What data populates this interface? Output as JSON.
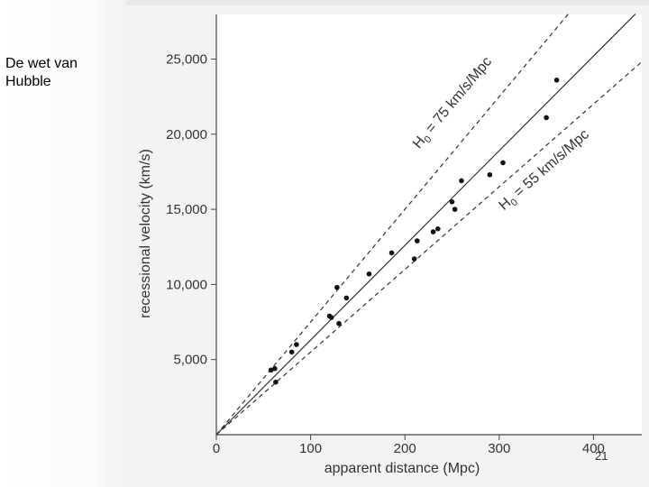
{
  "slide": {
    "title": "De wet van\nHubble",
    "page_number": "21"
  },
  "chart_data": {
    "type": "scatter",
    "title": "",
    "xlabel": "apparent distance (Mpc)",
    "ylabel": "recessional velocity (km/s)",
    "xlim": [
      0,
      450
    ],
    "ylim": [
      0,
      28000
    ],
    "x_ticks": [
      0,
      100,
      200,
      300,
      400
    ],
    "x_tick_labels": [
      "0",
      "100",
      "200",
      "300",
      "400"
    ],
    "y_ticks": [
      5000,
      10000,
      15000,
      20000,
      25000
    ],
    "y_tick_labels": [
      "5,000",
      "10,000",
      "15,000",
      "20,000",
      "25,000"
    ],
    "grid": false,
    "points": [
      {
        "x": 58,
        "y": 4300
      },
      {
        "x": 62,
        "y": 4400
      },
      {
        "x": 63,
        "y": 3500
      },
      {
        "x": 80,
        "y": 5500
      },
      {
        "x": 85,
        "y": 6000
      },
      {
        "x": 120,
        "y": 7900
      },
      {
        "x": 122,
        "y": 7800
      },
      {
        "x": 128,
        "y": 9800
      },
      {
        "x": 130,
        "y": 7400
      },
      {
        "x": 138,
        "y": 9100
      },
      {
        "x": 162,
        "y": 10700
      },
      {
        "x": 186,
        "y": 12100
      },
      {
        "x": 210,
        "y": 11700
      },
      {
        "x": 213,
        "y": 12900
      },
      {
        "x": 230,
        "y": 13500
      },
      {
        "x": 235,
        "y": 13700
      },
      {
        "x": 250,
        "y": 15500
      },
      {
        "x": 253,
        "y": 15000
      },
      {
        "x": 260,
        "y": 16900
      },
      {
        "x": 290,
        "y": 17300
      },
      {
        "x": 304,
        "y": 18100
      },
      {
        "x": 350,
        "y": 21100
      },
      {
        "x": 361,
        "y": 23600
      }
    ],
    "lines": [
      {
        "name": "fit",
        "slope": 63,
        "style": "solid",
        "label": ""
      },
      {
        "name": "H0 = 75 km/s/Mpc",
        "slope": 75,
        "style": "dashed",
        "label_prefix": "H",
        "label_sub": "0",
        "label_rest": " = 75 km/s/Mpc",
        "label_x": 215,
        "label_y": 19000
      },
      {
        "name": "H0 = 55 km/s/Mpc",
        "slope": 55,
        "style": "dashed",
        "label_prefix": "H",
        "label_sub": "0",
        "label_rest": " = 55 km/s/Mpc",
        "label_x": 305,
        "label_y": 14900
      }
    ]
  }
}
